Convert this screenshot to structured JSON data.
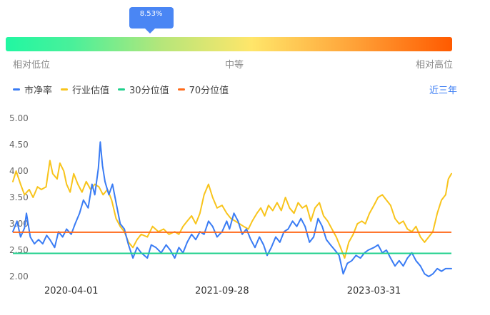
{
  "percentile": {
    "value_label": "8.53%",
    "fraction": 0.0853
  },
  "scale": {
    "low": "相对低位",
    "mid": "中等",
    "high": "相对高位"
  },
  "range_selector": {
    "label": "近三年"
  },
  "colors": {
    "pb": "#3a7cf4",
    "industry": "#f8c41c",
    "p30": "#1fd08c",
    "p70": "#ff6a1a"
  },
  "chart_data": {
    "type": "line",
    "title": "",
    "xlabel": "",
    "ylabel": "",
    "ylim": [
      2.0,
      5.0
    ],
    "yticks": [
      "2.00",
      "2.50",
      "3.00",
      "3.50",
      "4.00",
      "4.50",
      "5.00"
    ],
    "xticks": [
      "2020-04-01",
      "2021-09-28",
      "2023-03-31"
    ],
    "x_range": [
      "2019-09-03",
      "2024-01-05"
    ],
    "legend": [
      "市净率",
      "行业估值",
      "30分位值",
      "70分位值"
    ],
    "series": [
      {
        "name": "市净率",
        "points": [
          [
            "2019-09-03",
            2.85
          ],
          [
            "2019-09-18",
            3.05
          ],
          [
            "2019-10-01",
            2.75
          ],
          [
            "2019-10-15",
            2.92
          ],
          [
            "2019-10-22",
            3.2
          ],
          [
            "2019-11-05",
            2.75
          ],
          [
            "2019-11-20",
            2.62
          ],
          [
            "2019-12-05",
            2.7
          ],
          [
            "2019-12-20",
            2.62
          ],
          [
            "2020-01-03",
            2.78
          ],
          [
            "2020-01-15",
            2.7
          ],
          [
            "2020-02-01",
            2.55
          ],
          [
            "2020-02-15",
            2.85
          ],
          [
            "2020-03-01",
            2.75
          ],
          [
            "2020-03-15",
            2.9
          ],
          [
            "2020-04-01",
            2.8
          ],
          [
            "2020-04-15",
            3.0
          ],
          [
            "2020-05-01",
            3.2
          ],
          [
            "2020-05-15",
            3.45
          ],
          [
            "2020-06-01",
            3.3
          ],
          [
            "2020-06-15",
            3.75
          ],
          [
            "2020-06-25",
            3.55
          ],
          [
            "2020-07-08",
            4.05
          ],
          [
            "2020-07-15",
            4.55
          ],
          [
            "2020-07-23",
            4.1
          ],
          [
            "2020-08-01",
            3.8
          ],
          [
            "2020-08-15",
            3.55
          ],
          [
            "2020-08-28",
            3.75
          ],
          [
            "2020-09-10",
            3.4
          ],
          [
            "2020-09-25",
            3.0
          ],
          [
            "2020-10-10",
            2.9
          ],
          [
            "2020-10-25",
            2.6
          ],
          [
            "2020-11-10",
            2.35
          ],
          [
            "2020-11-25",
            2.55
          ],
          [
            "2020-12-10",
            2.45
          ],
          [
            "2021-01-01",
            2.35
          ],
          [
            "2021-01-15",
            2.6
          ],
          [
            "2021-02-01",
            2.55
          ],
          [
            "2021-02-20",
            2.45
          ],
          [
            "2021-03-10",
            2.6
          ],
          [
            "2021-03-25",
            2.5
          ],
          [
            "2021-04-10",
            2.35
          ],
          [
            "2021-04-25",
            2.55
          ],
          [
            "2021-05-10",
            2.45
          ],
          [
            "2021-05-25",
            2.65
          ],
          [
            "2021-06-10",
            2.8
          ],
          [
            "2021-06-25",
            2.7
          ],
          [
            "2021-07-10",
            2.85
          ],
          [
            "2021-07-25",
            2.8
          ],
          [
            "2021-08-10",
            3.05
          ],
          [
            "2021-08-25",
            2.95
          ],
          [
            "2021-09-10",
            2.75
          ],
          [
            "2021-09-28",
            2.85
          ],
          [
            "2021-10-15",
            3.05
          ],
          [
            "2021-10-25",
            2.9
          ],
          [
            "2021-11-10",
            3.2
          ],
          [
            "2021-11-25",
            3.05
          ],
          [
            "2021-12-10",
            2.8
          ],
          [
            "2021-12-25",
            2.9
          ],
          [
            "2022-01-10",
            2.7
          ],
          [
            "2022-01-25",
            2.55
          ],
          [
            "2022-02-10",
            2.75
          ],
          [
            "2022-02-25",
            2.6
          ],
          [
            "2022-03-10",
            2.4
          ],
          [
            "2022-03-25",
            2.55
          ],
          [
            "2022-04-10",
            2.75
          ],
          [
            "2022-04-25",
            2.65
          ],
          [
            "2022-05-10",
            2.85
          ],
          [
            "2022-05-25",
            2.9
          ],
          [
            "2022-06-10",
            3.05
          ],
          [
            "2022-06-25",
            2.95
          ],
          [
            "2022-07-10",
            3.1
          ],
          [
            "2022-07-25",
            2.95
          ],
          [
            "2022-08-10",
            2.65
          ],
          [
            "2022-08-25",
            2.75
          ],
          [
            "2022-09-10",
            3.1
          ],
          [
            "2022-09-25",
            2.95
          ],
          [
            "2022-10-10",
            2.7
          ],
          [
            "2022-10-25",
            2.6
          ],
          [
            "2022-11-10",
            2.5
          ],
          [
            "2022-11-25",
            2.4
          ],
          [
            "2022-12-10",
            2.05
          ],
          [
            "2022-12-25",
            2.25
          ],
          [
            "2023-01-10",
            2.3
          ],
          [
            "2023-01-25",
            2.4
          ],
          [
            "2023-02-10",
            2.35
          ],
          [
            "2023-02-25",
            2.45
          ],
          [
            "2023-03-10",
            2.5
          ],
          [
            "2023-03-31",
            2.55
          ],
          [
            "2023-04-15",
            2.6
          ],
          [
            "2023-04-30",
            2.45
          ],
          [
            "2023-05-15",
            2.5
          ],
          [
            "2023-05-30",
            2.35
          ],
          [
            "2023-06-15",
            2.2
          ],
          [
            "2023-06-30",
            2.3
          ],
          [
            "2023-07-15",
            2.2
          ],
          [
            "2023-07-30",
            2.35
          ],
          [
            "2023-08-15",
            2.45
          ],
          [
            "2023-08-30",
            2.3
          ],
          [
            "2023-09-15",
            2.2
          ],
          [
            "2023-09-30",
            2.05
          ],
          [
            "2023-10-15",
            2.0
          ],
          [
            "2023-10-30",
            2.05
          ],
          [
            "2023-11-15",
            2.15
          ],
          [
            "2023-11-30",
            2.1
          ],
          [
            "2023-12-15",
            2.15
          ],
          [
            "2024-01-05",
            2.15
          ]
        ]
      },
      {
        "name": "行业估值",
        "points": [
          [
            "2019-09-03",
            3.8
          ],
          [
            "2019-09-15",
            4.0
          ],
          [
            "2019-10-01",
            3.75
          ],
          [
            "2019-10-15",
            3.55
          ],
          [
            "2019-11-01",
            3.65
          ],
          [
            "2019-11-15",
            3.5
          ],
          [
            "2019-12-01",
            3.7
          ],
          [
            "2019-12-15",
            3.65
          ],
          [
            "2020-01-01",
            3.7
          ],
          [
            "2020-01-15",
            4.2
          ],
          [
            "2020-01-25",
            3.95
          ],
          [
            "2020-02-10",
            3.85
          ],
          [
            "2020-02-20",
            4.15
          ],
          [
            "2020-03-05",
            4.0
          ],
          [
            "2020-03-15",
            3.75
          ],
          [
            "2020-03-28",
            3.6
          ],
          [
            "2020-04-10",
            3.95
          ],
          [
            "2020-04-25",
            3.75
          ],
          [
            "2020-05-10",
            3.6
          ],
          [
            "2020-05-25",
            3.8
          ],
          [
            "2020-06-10",
            3.65
          ],
          [
            "2020-06-25",
            3.75
          ],
          [
            "2020-07-10",
            3.7
          ],
          [
            "2020-07-25",
            3.55
          ],
          [
            "2020-08-10",
            3.65
          ],
          [
            "2020-08-25",
            3.45
          ],
          [
            "2020-09-10",
            3.1
          ],
          [
            "2020-09-25",
            2.95
          ],
          [
            "2020-10-10",
            2.85
          ],
          [
            "2020-10-25",
            2.65
          ],
          [
            "2020-11-10",
            2.55
          ],
          [
            "2020-11-25",
            2.7
          ],
          [
            "2020-12-10",
            2.8
          ],
          [
            "2021-01-01",
            2.75
          ],
          [
            "2021-01-20",
            2.95
          ],
          [
            "2021-02-10",
            2.85
          ],
          [
            "2021-03-01",
            2.9
          ],
          [
            "2021-03-20",
            2.8
          ],
          [
            "2021-04-10",
            2.85
          ],
          [
            "2021-04-25",
            2.8
          ],
          [
            "2021-05-10",
            2.95
          ],
          [
            "2021-05-25",
            3.05
          ],
          [
            "2021-06-10",
            3.15
          ],
          [
            "2021-06-25",
            3.0
          ],
          [
            "2021-07-10",
            3.2
          ],
          [
            "2021-07-25",
            3.55
          ],
          [
            "2021-08-10",
            3.75
          ],
          [
            "2021-08-25",
            3.5
          ],
          [
            "2021-09-10",
            3.3
          ],
          [
            "2021-09-28",
            3.35
          ],
          [
            "2021-10-15",
            3.2
          ],
          [
            "2021-10-30",
            3.1
          ],
          [
            "2021-11-15",
            3.05
          ],
          [
            "2021-11-30",
            3.0
          ],
          [
            "2021-12-15",
            2.95
          ],
          [
            "2022-01-01",
            2.9
          ],
          [
            "2022-01-15",
            3.05
          ],
          [
            "2022-02-01",
            3.2
          ],
          [
            "2022-02-15",
            3.3
          ],
          [
            "2022-03-01",
            3.15
          ],
          [
            "2022-03-15",
            3.35
          ],
          [
            "2022-03-30",
            3.25
          ],
          [
            "2022-04-15",
            3.4
          ],
          [
            "2022-04-30",
            3.25
          ],
          [
            "2022-05-15",
            3.5
          ],
          [
            "2022-05-30",
            3.3
          ],
          [
            "2022-06-15",
            3.2
          ],
          [
            "2022-06-30",
            3.4
          ],
          [
            "2022-07-15",
            3.3
          ],
          [
            "2022-07-30",
            3.35
          ],
          [
            "2022-08-15",
            3.05
          ],
          [
            "2022-08-30",
            3.3
          ],
          [
            "2022-09-15",
            3.4
          ],
          [
            "2022-09-30",
            3.15
          ],
          [
            "2022-10-15",
            3.05
          ],
          [
            "2022-10-30",
            2.9
          ],
          [
            "2022-11-15",
            2.75
          ],
          [
            "2022-11-30",
            2.55
          ],
          [
            "2022-12-15",
            2.35
          ],
          [
            "2022-12-30",
            2.65
          ],
          [
            "2023-01-15",
            2.8
          ],
          [
            "2023-01-30",
            3.0
          ],
          [
            "2023-02-15",
            3.05
          ],
          [
            "2023-02-28",
            3.0
          ],
          [
            "2023-03-15",
            3.2
          ],
          [
            "2023-03-31",
            3.35
          ],
          [
            "2023-04-15",
            3.5
          ],
          [
            "2023-04-30",
            3.55
          ],
          [
            "2023-05-15",
            3.45
          ],
          [
            "2023-05-30",
            3.35
          ],
          [
            "2023-06-15",
            3.1
          ],
          [
            "2023-06-30",
            3.0
          ],
          [
            "2023-07-15",
            3.05
          ],
          [
            "2023-07-30",
            2.9
          ],
          [
            "2023-08-15",
            2.85
          ],
          [
            "2023-08-30",
            2.95
          ],
          [
            "2023-09-15",
            2.75
          ],
          [
            "2023-09-30",
            2.65
          ],
          [
            "2023-10-15",
            2.75
          ],
          [
            "2023-10-30",
            2.85
          ],
          [
            "2023-11-15",
            3.2
          ],
          [
            "2023-11-30",
            3.45
          ],
          [
            "2023-12-15",
            3.55
          ],
          [
            "2023-12-25",
            3.85
          ],
          [
            "2024-01-05",
            3.95
          ]
        ]
      },
      {
        "name": "30分位值",
        "constant": 2.44
      },
      {
        "name": "70分位值",
        "constant": 2.84
      }
    ]
  }
}
